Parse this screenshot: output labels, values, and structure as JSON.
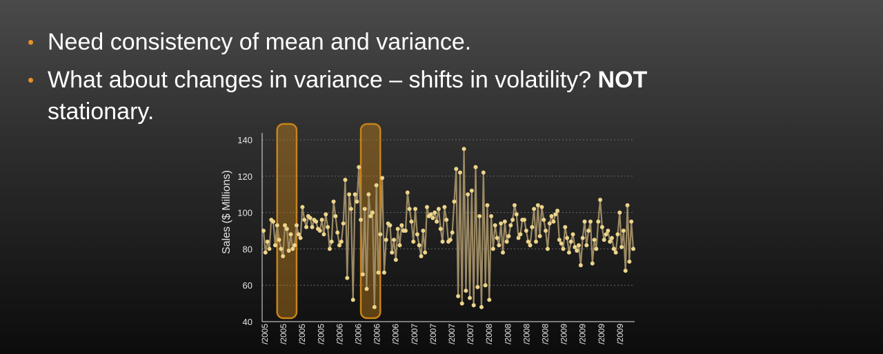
{
  "slide": {
    "bullets": [
      {
        "text": "Need consistency of mean and variance."
      },
      {
        "text": "What about changes in variance – shifts in volatility? ",
        "bold": "NOT",
        "line2": "stationary."
      }
    ]
  },
  "colors": {
    "accent": "#e8902a",
    "series": "#ecd48a",
    "line": "#9c8a64",
    "highlight": "#c98319"
  },
  "chart_data": {
    "type": "line",
    "ylabel": "Sales  ($ Millions)",
    "ylim": [
      40,
      140
    ],
    "yticks": [
      "40",
      "60",
      "80",
      "100",
      "120",
      "140"
    ],
    "grid": "horizontal-dashed",
    "x_tick_labels": [
      "/2005",
      "/2005",
      "/2005",
      "/2005",
      "/2006",
      "/2006",
      "/2006",
      "/2006",
      "/2007",
      "/2007",
      "/2007",
      "/2007",
      "/2008",
      "/2008",
      "/2008",
      "/2008",
      "/2009",
      "/2009",
      "/2009",
      "/2009"
    ],
    "highlight_ranges": [
      [
        7,
        17
      ],
      [
        50,
        60
      ]
    ],
    "values": [
      90,
      78,
      84,
      80,
      96,
      95,
      82,
      93,
      85,
      80,
      76,
      93,
      91,
      79,
      88,
      80,
      82,
      93,
      88,
      86,
      103,
      96,
      92,
      98,
      97,
      92,
      96,
      95,
      91,
      90,
      96,
      88,
      99,
      92,
      80,
      84,
      106,
      98,
      89,
      82,
      84,
      94,
      118,
      64,
      110,
      102,
      52,
      110,
      106,
      125,
      96,
      66,
      102,
      58,
      110,
      98,
      100,
      48,
      115,
      67,
      88,
      119,
      67,
      85,
      94,
      93,
      78,
      85,
      74,
      91,
      82,
      93,
      90,
      90,
      111,
      102,
      95,
      84,
      102,
      88,
      82,
      76,
      90,
      78,
      103,
      98,
      99,
      97,
      100,
      95,
      102,
      91,
      84,
      103,
      96,
      84,
      85,
      89,
      106,
      124,
      54,
      122,
      50,
      135,
      57,
      110,
      53,
      112,
      49,
      125,
      59,
      98,
      48,
      122,
      60,
      104,
      52,
      98,
      80,
      93,
      86,
      82,
      94,
      78,
      95,
      84,
      87,
      93,
      96,
      104,
      99,
      86,
      88,
      96,
      96,
      90,
      84,
      82,
      92,
      102,
      84,
      104,
      87,
      103,
      96,
      90,
      80,
      94,
      98,
      95,
      99,
      101,
      85,
      83,
      80,
      92,
      86,
      78,
      84,
      88,
      81,
      79,
      82,
      71,
      86,
      95,
      82,
      90,
      95,
      72,
      85,
      80,
      95,
      107,
      92,
      85,
      88,
      90,
      84,
      86,
      80,
      78,
      88,
      100,
      81,
      90,
      68,
      104,
      73,
      95,
      80
    ]
  }
}
